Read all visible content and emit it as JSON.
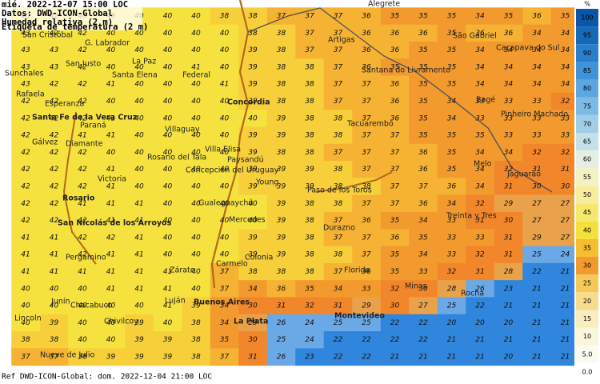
{
  "header": {
    "lines": [
      "mié. 2022-12-07 15:00 LOC",
      "Datos: DWD-ICON-Global",
      "Humedad relativa (2 m)"
    ]
  },
  "subtitle": "Etiqueta de temperatura (2 m)",
  "footer": "Ref DWD-ICON-Global: dom. 2022-12-04 21:00 LOC",
  "legend": {
    "title": "%",
    "items": [
      {
        "label": "100",
        "color": "#0b56a6"
      },
      {
        "label": "95",
        "color": "#1668b8"
      },
      {
        "label": "90",
        "color": "#2a7fcc"
      },
      {
        "label": "85",
        "color": "#3f93da"
      },
      {
        "label": "80",
        "color": "#5aa7e2"
      },
      {
        "label": "75",
        "color": "#7cbbe6"
      },
      {
        "label": "70",
        "color": "#a0cee8"
      },
      {
        "label": "65",
        "color": "#c4e1ea"
      },
      {
        "label": "60",
        "color": "#e4efe4"
      },
      {
        "label": "55",
        "color": "#f3f2c2"
      },
      {
        "label": "50",
        "color": "#f6ee9c"
      },
      {
        "label": "45",
        "color": "#f6e86c"
      },
      {
        "label": "40",
        "color": "#f5e13c"
      },
      {
        "label": "35",
        "color": "#f6bd30"
      },
      {
        "label": "30",
        "color": "#f39a2c"
      },
      {
        "label": "25",
        "color": "#f5c85a"
      },
      {
        "label": "20",
        "color": "#f7dc8c"
      },
      {
        "label": "15",
        "color": "#f9ecbe"
      },
      {
        "label": "10",
        "color": "#fbf5dc"
      },
      {
        "label": "5.0",
        "color": "#fdfbf0"
      },
      {
        "label": "0.0",
        "color": "#ffffff"
      }
    ]
  },
  "temperatures": [
    [
      40,
      42,
      40,
      40,
      40,
      40,
      40,
      38,
      38,
      37,
      37,
      37,
      36,
      35,
      35,
      35,
      34,
      35,
      36,
      35
    ],
    [
      43,
      42,
      42,
      40,
      40,
      40,
      40,
      40,
      38,
      38,
      37,
      37,
      36,
      36,
      36,
      35,
      36,
      36,
      34,
      34
    ],
    [
      43,
      43,
      42,
      40,
      40,
      40,
      40,
      40,
      39,
      38,
      37,
      37,
      36,
      36,
      35,
      35,
      34,
      34,
      34,
      34
    ],
    [
      43,
      43,
      42,
      40,
      40,
      40,
      41,
      40,
      39,
      38,
      38,
      37,
      36,
      35,
      35,
      35,
      34,
      34,
      34,
      34
    ],
    [
      43,
      42,
      42,
      41,
      40,
      40,
      40,
      41,
      39,
      38,
      38,
      37,
      37,
      36,
      35,
      35,
      34,
      34,
      34,
      34
    ],
    [
      42,
      42,
      42,
      40,
      40,
      40,
      40,
      40,
      39,
      38,
      38,
      37,
      37,
      36,
      35,
      34,
      33,
      33,
      33,
      32
    ],
    [
      42,
      42,
      42,
      41,
      40,
      40,
      40,
      40,
      40,
      39,
      38,
      38,
      37,
      36,
      35,
      34,
      33,
      33,
      33,
      33
    ],
    [
      42,
      42,
      41,
      41,
      40,
      40,
      40,
      40,
      39,
      39,
      38,
      38,
      37,
      37,
      35,
      35,
      35,
      33,
      33,
      33
    ],
    [
      42,
      42,
      42,
      40,
      40,
      40,
      40,
      40,
      39,
      38,
      38,
      37,
      37,
      37,
      36,
      35,
      34,
      34,
      32,
      32
    ],
    [
      42,
      42,
      42,
      41,
      40,
      40,
      40,
      40,
      39,
      39,
      39,
      38,
      37,
      37,
      36,
      35,
      34,
      32,
      31,
      31
    ],
    [
      42,
      42,
      42,
      41,
      40,
      40,
      40,
      40,
      39,
      39,
      39,
      38,
      38,
      37,
      37,
      36,
      34,
      31,
      30,
      30
    ],
    [
      42,
      42,
      41,
      41,
      41,
      40,
      40,
      40,
      40,
      39,
      38,
      38,
      37,
      37,
      36,
      34,
      32,
      29,
      27,
      27
    ],
    [
      42,
      42,
      42,
      41,
      41,
      40,
      40,
      40,
      40,
      39,
      38,
      37,
      36,
      35,
      34,
      33,
      31,
      30,
      27,
      27
    ],
    [
      41,
      41,
      42,
      42,
      41,
      40,
      40,
      40,
      39,
      39,
      38,
      37,
      37,
      36,
      35,
      33,
      33,
      31,
      29,
      27
    ],
    [
      41,
      41,
      42,
      41,
      41,
      40,
      40,
      40,
      39,
      39,
      38,
      38,
      37,
      35,
      34,
      33,
      32,
      31,
      25,
      24
    ],
    [
      41,
      41,
      41,
      41,
      41,
      41,
      40,
      37,
      38,
      38,
      38,
      37,
      36,
      35,
      33,
      32,
      31,
      28,
      22,
      21
    ],
    [
      40,
      40,
      40,
      41,
      41,
      41,
      40,
      37,
      34,
      36,
      35,
      34,
      33,
      32,
      30,
      28,
      26,
      23,
      21,
      21
    ],
    [
      40,
      40,
      40,
      40,
      40,
      41,
      39,
      34,
      30,
      31,
      32,
      31,
      29,
      30,
      27,
      25,
      22,
      21,
      21,
      21
    ],
    [
      40,
      39,
      40,
      40,
      39,
      40,
      38,
      34,
      29,
      26,
      24,
      25,
      25,
      22,
      22,
      20,
      20,
      20,
      21,
      21
    ],
    [
      38,
      38,
      40,
      40,
      39,
      39,
      38,
      35,
      30,
      25,
      24,
      22,
      22,
      22,
      22,
      21,
      21,
      21,
      21,
      21
    ],
    [
      37,
      37,
      38,
      39,
      39,
      39,
      38,
      37,
      31,
      26,
      23,
      22,
      22,
      21,
      21,
      21,
      21,
      20,
      21,
      21
    ]
  ],
  "places": [
    "San Cristóbal",
    "G. Labrador",
    "San Justo",
    "Sunchales",
    "Santa Elena",
    "Federal",
    "Rafaela",
    "La Paz",
    "Esperanza",
    "Santa Fe de la Vera Cruz",
    "Paraná",
    "Villaguay",
    "Concordia",
    "Gálvez",
    "Diamante",
    "Rosario del Tala",
    "Villa Elisa",
    "Paysandú",
    "Victoria",
    "Concepción del Uruguay",
    "Rosario",
    "Gualeguaychú",
    "Young",
    "Paso de los Toros",
    "Durazno",
    "Melo",
    "Treinta y Tres",
    "Mercedes",
    "San Nicolás de los Arroyos",
    "Pergamino",
    "Zárate",
    "Carmelo",
    "Colonia",
    "Buenos Aires",
    "La Plata",
    "Montevideo",
    "Florida",
    "Minas",
    "Rocha",
    "Tacuarembó",
    "Artigas",
    "Santana do Livramento",
    "São Gabriel",
    "Bagé",
    "Pinheiro Machado",
    "Jaguarão",
    "Lincoln",
    "Junín",
    "Chacabuco",
    "Luján",
    "Chivilcoy",
    "Nueve de Julio",
    "Caçapava do Sul",
    "Alegrete"
  ]
}
